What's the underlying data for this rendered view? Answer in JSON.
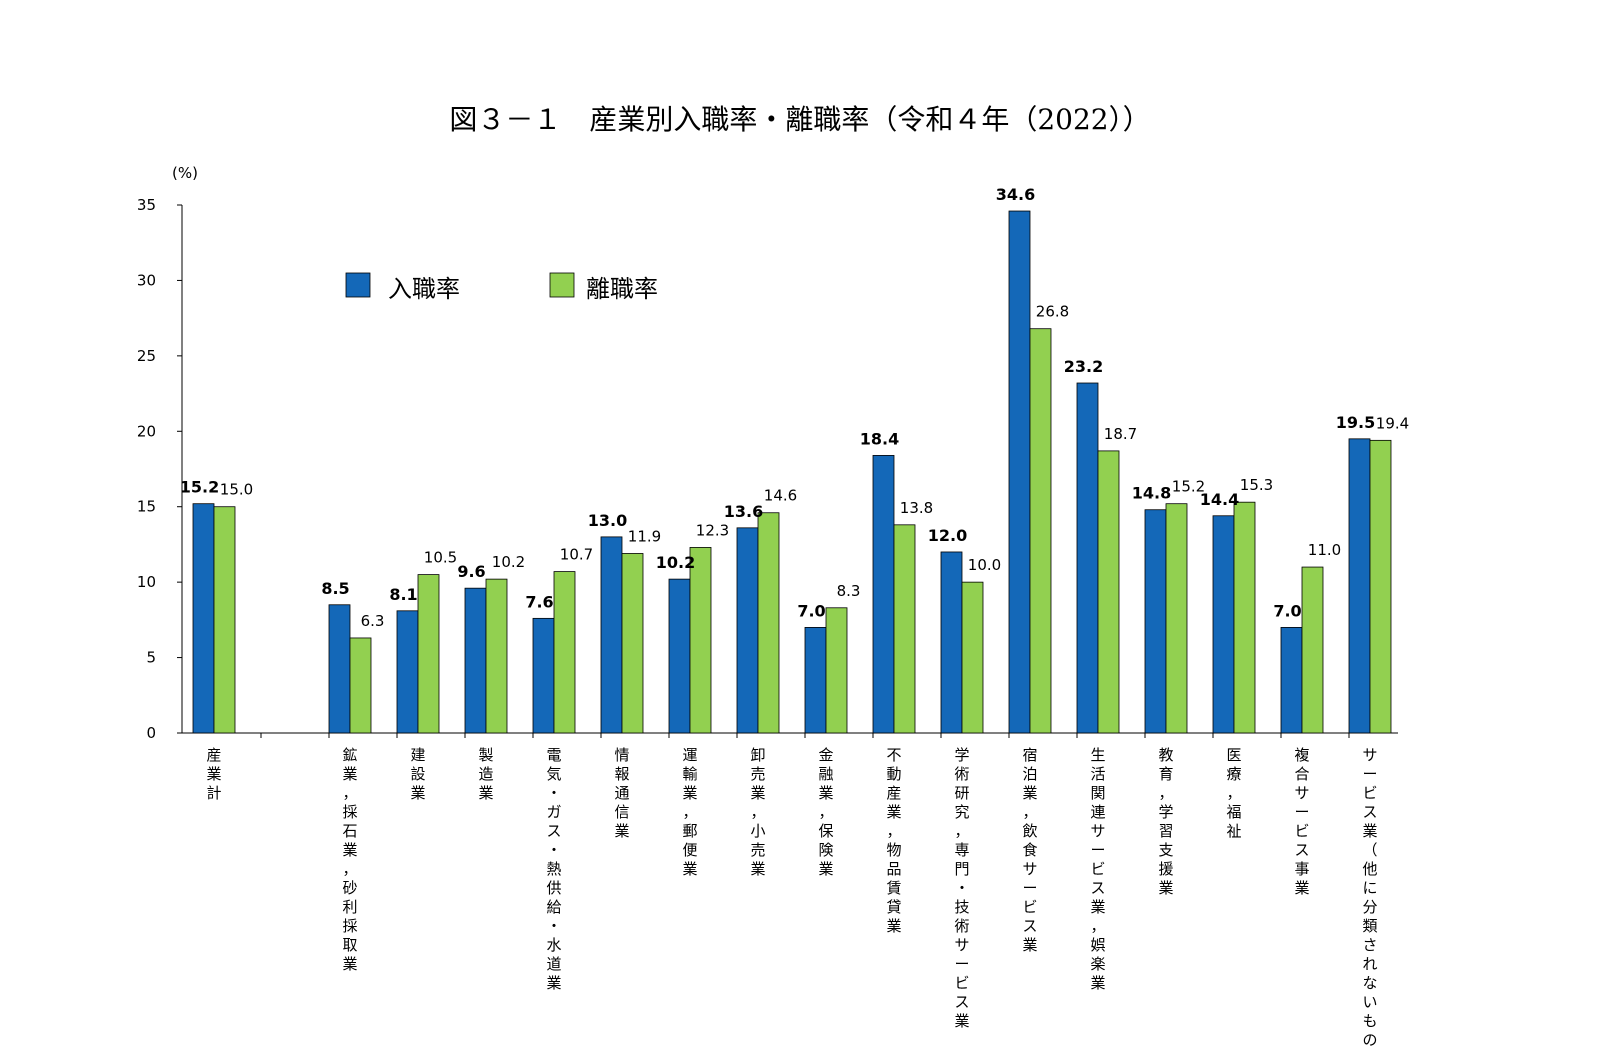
{
  "chart_data": {
    "type": "bar",
    "title": "図３－１　産業別入職率・離職率（令和４年（2022））",
    "ylabel": "(%)",
    "ylim": [
      0,
      35
    ],
    "yticks": [
      0,
      5,
      10,
      15,
      20,
      25,
      30,
      35
    ],
    "grid": false,
    "legend_position": "top-left",
    "categories": [
      "産業計",
      "鉱業，採石業，砂利採取業",
      "建設業",
      "製造業",
      "電気・ガス・熱供給・水道業",
      "情報通信業",
      "運輸業，郵便業",
      "卸売業，小売業",
      "金融業，保険業",
      "不動産業，物品賃貸業",
      "学術研究，専門・技術サービス業",
      "宿泊業，飲食サービス業",
      "生活関連サービス業，娯楽業",
      "教育，学習支援業",
      "医療，福祉",
      "複合サービス事業",
      "サービス業（他に分類されないもの）"
    ],
    "series": [
      {
        "name": "入職率",
        "color": "#1468b8",
        "values": [
          15.2,
          8.5,
          8.1,
          9.6,
          7.6,
          13.0,
          10.2,
          13.6,
          7.0,
          18.4,
          12.0,
          34.6,
          23.2,
          14.8,
          14.4,
          7.0,
          19.5
        ],
        "labels": [
          "15.2",
          "8.5",
          "8.1",
          "9.6",
          "7.6",
          "13.0",
          "10.2",
          "13.6",
          "7.0",
          "18.4",
          "12.0",
          "34.6",
          "23.2",
          "14.8",
          "14.4",
          "7.0",
          "19.5"
        ]
      },
      {
        "name": "離職率",
        "color": "#92d050",
        "values": [
          15.0,
          6.3,
          10.5,
          10.2,
          10.7,
          11.9,
          12.3,
          14.6,
          8.3,
          13.8,
          10.0,
          26.8,
          18.7,
          15.2,
          15.3,
          11.0,
          19.4
        ],
        "labels": [
          "15.0",
          "6.3",
          "10.5",
          "10.2",
          "10.7",
          "11.9",
          "12.3",
          "14.6",
          "8.3",
          "13.8",
          "10.0",
          "26.8",
          "18.7",
          "15.2",
          "15.3",
          "11.0",
          "19.4"
        ]
      }
    ]
  }
}
